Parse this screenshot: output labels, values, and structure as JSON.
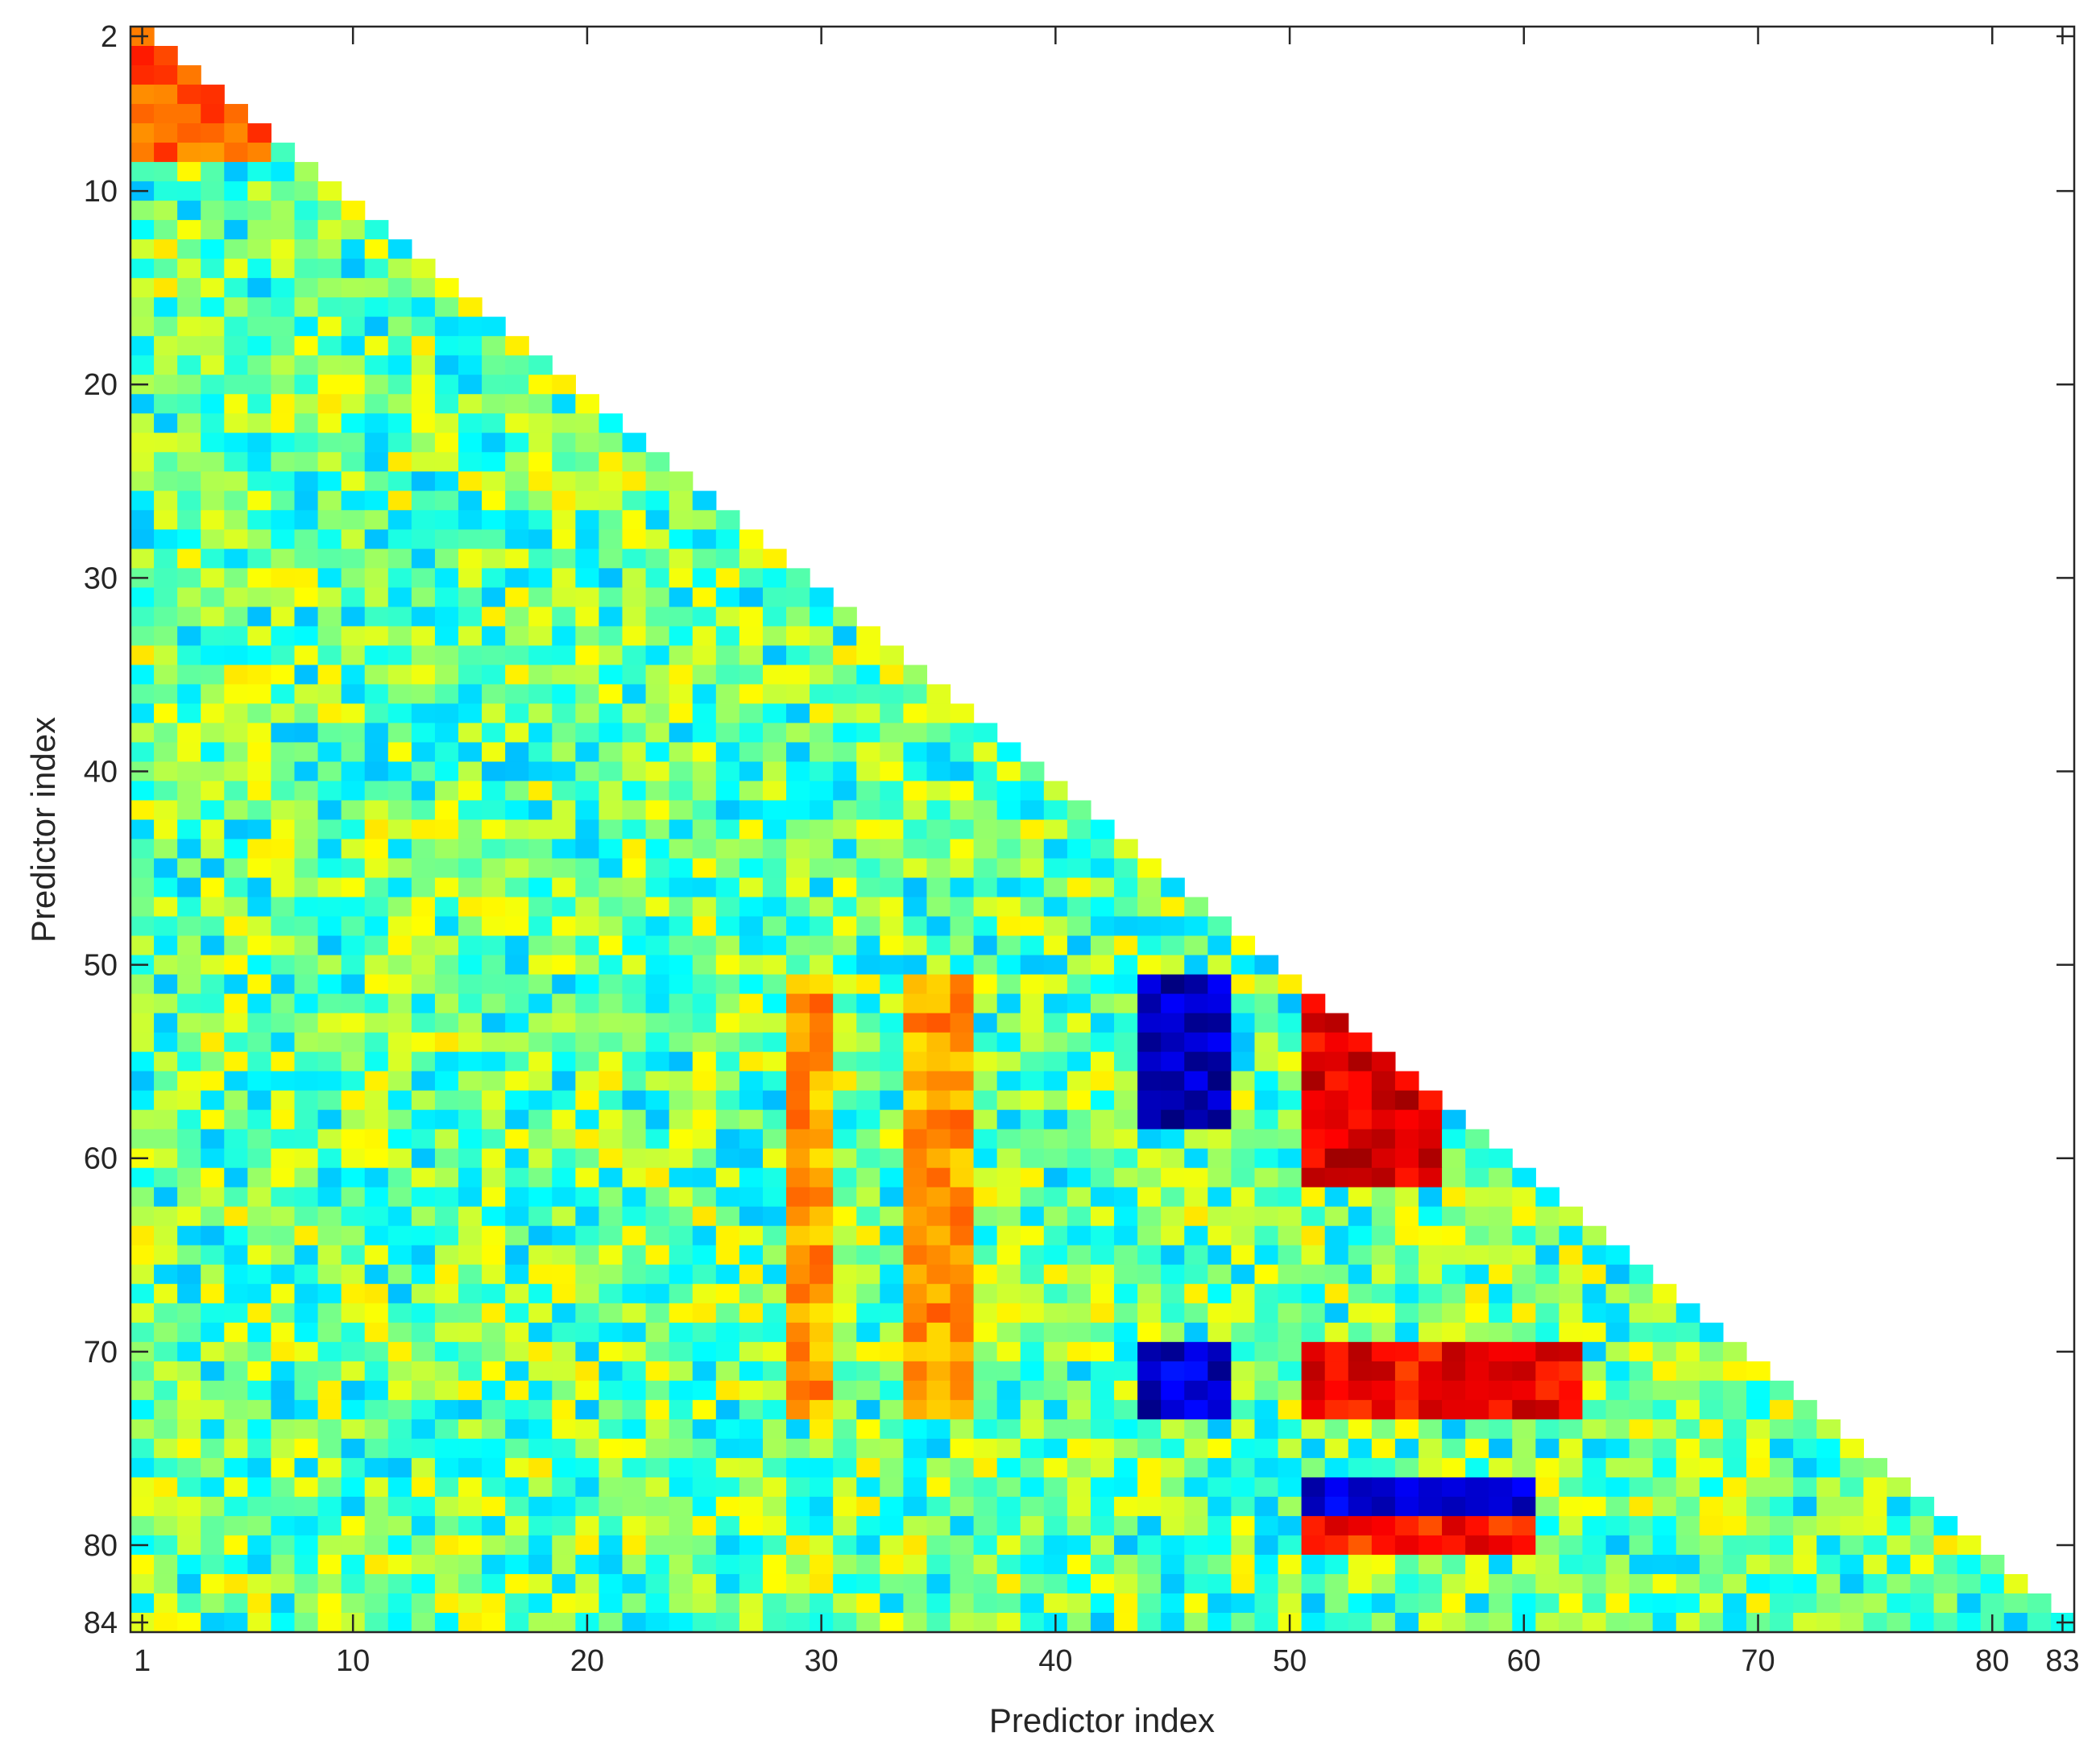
{
  "chart_data": {
    "type": "heatmap",
    "title": "",
    "xlabel": "Predictor index",
    "ylabel": "Predictor index",
    "n": 84,
    "x_range": [
      1,
      83
    ],
    "y_range": [
      2,
      84
    ],
    "x_ticks": [
      1,
      10,
      20,
      30,
      40,
      50,
      60,
      70,
      80,
      83
    ],
    "y_ticks": [
      2,
      10,
      20,
      30,
      40,
      50,
      60,
      70,
      80,
      84
    ],
    "layout": "lower-triangular",
    "colormap": "jet",
    "colorbar": false,
    "grid": false,
    "strong_blocks": [
      {
        "rows": [
          51,
          58
        ],
        "cols": [
          44,
          47
        ],
        "level": 0.05
      },
      {
        "rows": [
          70,
          73
        ],
        "cols": [
          44,
          47
        ],
        "level": 0.08
      },
      {
        "rows": [
          51,
          61
        ],
        "cols": [
          51,
          56
        ],
        "level": 0.9
      },
      {
        "rows": [
          70,
          73
        ],
        "cols": [
          51,
          62
        ],
        "level": 0.88
      },
      {
        "rows": [
          77,
          78
        ],
        "cols": [
          51,
          60
        ],
        "level": 0.1
      },
      {
        "rows": [
          79,
          80
        ],
        "cols": [
          51,
          60
        ],
        "level": 0.85
      },
      {
        "rows": [
          51,
          73
        ],
        "cols": [
          29,
          30
        ],
        "level": 0.72
      },
      {
        "rows": [
          51,
          73
        ],
        "cols": [
          34,
          36
        ],
        "level": 0.72
      },
      {
        "rows": [
          2,
          8
        ],
        "cols": [
          1,
          6
        ],
        "level": 0.78
      }
    ]
  }
}
